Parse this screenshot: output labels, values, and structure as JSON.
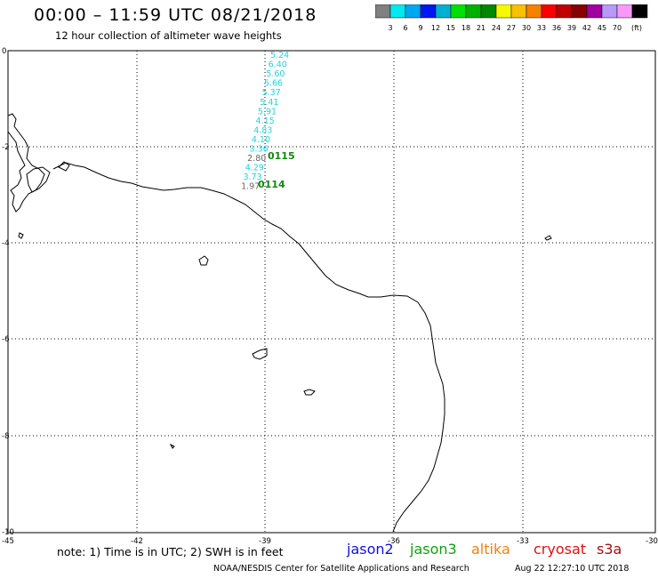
{
  "header": {
    "title": "00:00 – 11:59 UTC 08/21/2018",
    "subtitle": "12 hour collection of altimeter wave heights"
  },
  "legend": {
    "colors": [
      "#808080",
      "#00e8f0",
      "#00a8f0",
      "#0018f0",
      "#00b0d0",
      "#00e000",
      "#00b000",
      "#008800",
      "#f8f800",
      "#f8c000",
      "#f88000",
      "#f80000",
      "#c00000",
      "#880000",
      "#a000a0",
      "#b898f8",
      "#f898f8",
      "#000000"
    ],
    "labels": [
      "3",
      "6",
      "9",
      "12",
      "15",
      "18",
      "21",
      "24",
      "27",
      "30",
      "33",
      "36",
      "39",
      "42",
      "45",
      "70"
    ],
    "unit": "(ft)"
  },
  "axes": {
    "x_ticks": [
      "-45",
      "-42",
      "-39",
      "-36",
      "-33",
      "-30"
    ],
    "y_ticks": [
      "0",
      "-2",
      "-4",
      "-6",
      "-8",
      "-10"
    ]
  },
  "measurements": [
    {
      "value": "5.24",
      "color": "cyan"
    },
    {
      "value": "6.40",
      "color": "cyan"
    },
    {
      "value": "5.60",
      "color": "cyan"
    },
    {
      "value": "5.66",
      "color": "cyan"
    },
    {
      "value": "5.37",
      "color": "cyan"
    },
    {
      "value": "5.41",
      "color": "cyan"
    },
    {
      "value": "5.91",
      "color": "cyan"
    },
    {
      "value": "4.15",
      "color": "cyan"
    },
    {
      "value": "4.83",
      "color": "cyan"
    },
    {
      "value": "4.10",
      "color": "cyan"
    },
    {
      "value": "3.36",
      "color": "cyan"
    },
    {
      "value": "2.80",
      "color": "gray"
    },
    {
      "value": "4.29",
      "color": "cyan"
    },
    {
      "value": "3.73",
      "color": "cyan"
    },
    {
      "value": "1.97",
      "color": "gray"
    }
  ],
  "pass_labels": [
    "0115",
    "0114"
  ],
  "footer": {
    "note": "note: 1) Time is in UTC; 2) SWH is in feet",
    "satellites": [
      {
        "name": "jason2",
        "color": "#1010e0"
      },
      {
        "name": "jason3",
        "color": "#10a010"
      },
      {
        "name": "altika",
        "color": "#f08010"
      },
      {
        "name": "cryosat",
        "color": "#e01010"
      },
      {
        "name": "s3a",
        "color": "#a01010"
      }
    ],
    "credit": "NOAA/NESDIS Center for Satellite Applications and Research",
    "timestamp": "Aug 22 12:27:10 UTC 2018"
  }
}
